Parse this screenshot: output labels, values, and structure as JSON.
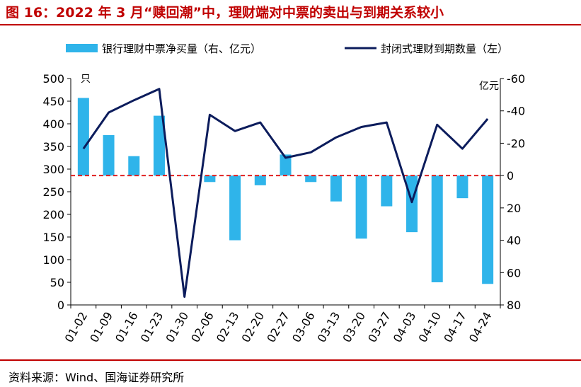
{
  "title": "图 16：2022 年 3 月“赎回潮”中，理财端对中票的卖出与到期关系较小",
  "source": "资料来源：Wind、国海证券研究所",
  "chart_data": {
    "type": "bar+line",
    "categories": [
      "01-02",
      "01-09",
      "01-16",
      "01-23",
      "01-30",
      "02-06",
      "02-13",
      "02-20",
      "02-27",
      "03-06",
      "03-13",
      "03-20",
      "03-27",
      "04-03",
      "04-10",
      "04-17",
      "04-24"
    ],
    "series": [
      {
        "name": "银行理财中票净买量（右、亿元）",
        "type": "bar",
        "axis": "right",
        "color": "#2fb4ea",
        "values": [
          -48,
          -25,
          -12,
          -37,
          0,
          4,
          40,
          6,
          -13,
          4,
          16,
          39,
          19,
          35,
          66,
          14,
          67
        ]
      },
      {
        "name": "封闭式理财到期数量（左）",
        "type": "line",
        "axis": "left",
        "color": "#0c1c5c",
        "values": [
          345,
          425,
          452,
          477,
          18,
          420,
          384,
          403,
          325,
          337,
          370,
          393,
          403,
          227,
          398,
          345,
          411
        ]
      }
    ],
    "left_axis": {
      "unit": "只",
      "ylim": [
        0,
        500
      ],
      "ticks": [
        "0",
        "50",
        "100",
        "150",
        "200",
        "250",
        "300",
        "350",
        "400",
        "450",
        "500"
      ]
    },
    "right_axis": {
      "unit": "亿元",
      "ylim": [
        80,
        -60
      ],
      "inverted": true,
      "ticks": [
        "-60",
        "-40",
        "-20",
        "0",
        "20",
        "40",
        "60",
        "80"
      ]
    },
    "reference_line": {
      "value": 0,
      "axis": "right",
      "style": "dashed",
      "color": "#e02020"
    },
    "legend_position": "top",
    "grid": false
  }
}
